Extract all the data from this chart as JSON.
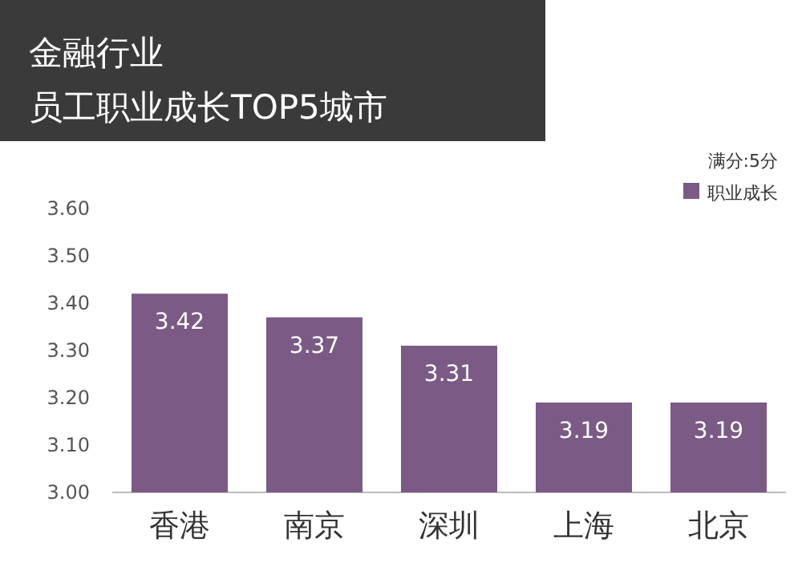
{
  "chart_data": {
    "type": "bar",
    "title": "金融行业",
    "subtitle": "员工职业成长TOP5城市",
    "annotations": [
      "满分:5分"
    ],
    "categories": [
      "香港",
      "南京",
      "深圳",
      "上海",
      "北京"
    ],
    "series": [
      {
        "name": "职业成长",
        "color": "#7b5a85",
        "values": [
          3.42,
          3.37,
          3.31,
          3.19,
          3.19
        ]
      }
    ],
    "ylim": [
      3.0,
      3.6
    ],
    "yticks": [
      {
        "value": 3.0,
        "label": "3.00"
      },
      {
        "value": 3.1,
        "label": "3.10"
      },
      {
        "value": 3.2,
        "label": "3.20"
      },
      {
        "value": 3.3,
        "label": "3.30"
      },
      {
        "value": 3.4,
        "label": "3.40"
      },
      {
        "value": 3.5,
        "label": "3.50"
      },
      {
        "value": 3.6,
        "label": "3.60"
      }
    ],
    "data_labels": true,
    "legend": "top right"
  }
}
